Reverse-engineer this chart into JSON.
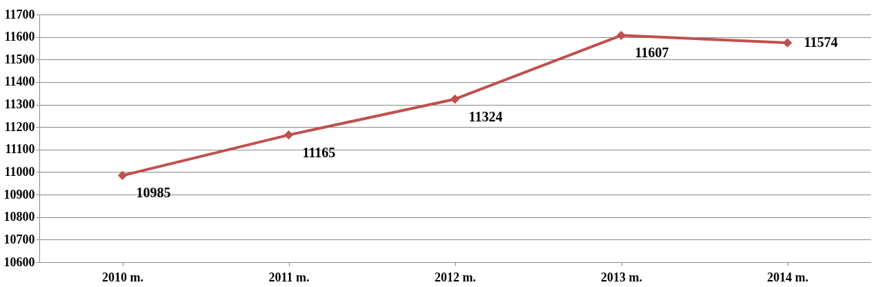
{
  "chart_data": {
    "type": "line",
    "categories": [
      "2010 m.",
      "2011 m.",
      "2012 m.",
      "2013 m.",
      "2014 m."
    ],
    "series": [
      {
        "color": "#c0504d",
        "values": [
          10985,
          11165,
          11324,
          11607,
          11574
        ]
      }
    ],
    "ylim": [
      10600,
      11700
    ],
    "yticks": [
      10600,
      10700,
      10800,
      10900,
      11000,
      11100,
      11200,
      11300,
      11400,
      11500,
      11600,
      11700
    ],
    "grid": "y",
    "marker": "diamond",
    "line_style": "solid",
    "data_labels": true
  }
}
